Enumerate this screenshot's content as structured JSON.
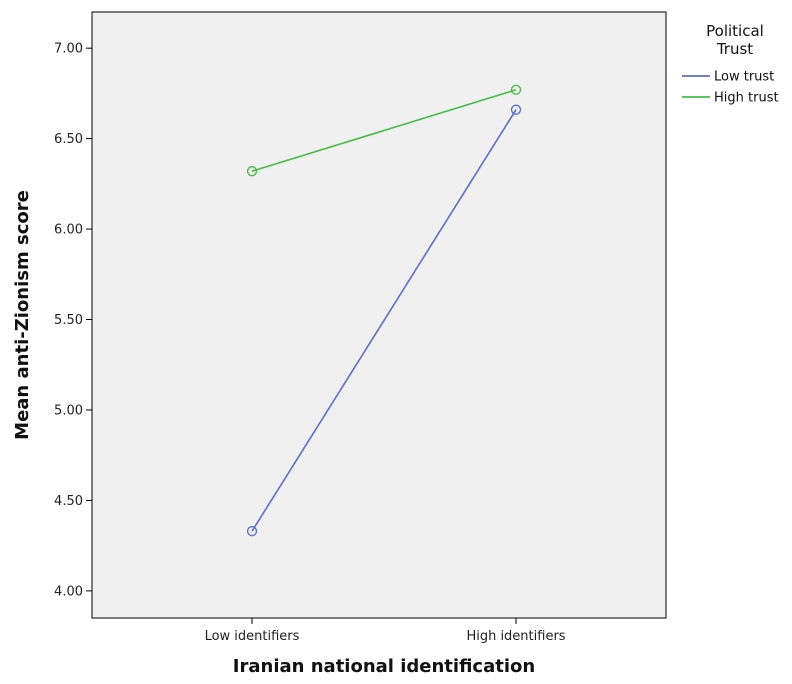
{
  "chart_data": {
    "type": "line",
    "categories": [
      "Low identifiers",
      "High identifiers"
    ],
    "series": [
      {
        "name": "Low trust",
        "values": [
          4.33,
          6.66
        ],
        "color": "#5b6fcf"
      },
      {
        "name": "High trust",
        "values": [
          6.32,
          6.77
        ],
        "color": "#44bb44"
      }
    ],
    "xlabel": "Iranian national identification",
    "ylabel": "Mean anti-Zionism score",
    "ylim": [
      3.85,
      7.2
    ],
    "yticks": [
      "4.00",
      "4.50",
      "5.00",
      "5.50",
      "6.00",
      "6.50",
      "7.00"
    ],
    "legend": {
      "title_lines": [
        "Political",
        "Trust"
      ],
      "position": "right"
    },
    "plot_background": "#f0f0f0",
    "grid": false
  }
}
